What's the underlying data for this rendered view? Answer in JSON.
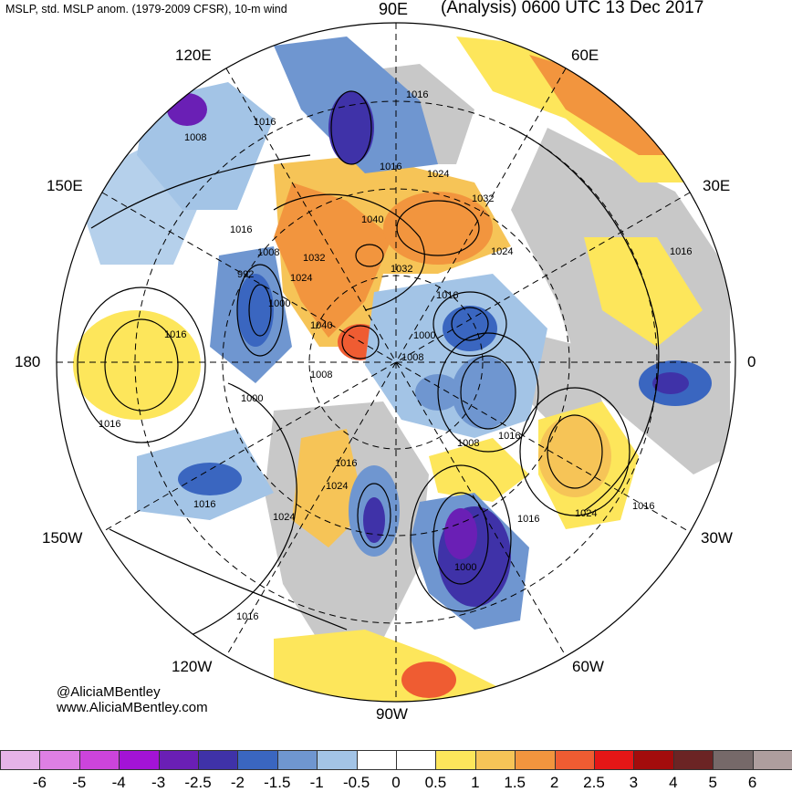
{
  "header": {
    "left_title": "MSLP, std. MSLP anom. (1979-2009 CFSR), 10-m wind",
    "right_title": "(Analysis) 0600 UTC 13 Dec 2017"
  },
  "longitude_labels": {
    "n90e": "90E",
    "n60e": "60E",
    "n120e": "120E",
    "n30e": "30E",
    "n150e": "150E",
    "n180": "180",
    "n0": "0",
    "n150w": "150W",
    "n30w": "30W",
    "n120w": "120W",
    "n60w": "60W",
    "n90w": "90W"
  },
  "credit": {
    "handle": "@AliciaMBentley",
    "site": "www.AliciaMBentley.com"
  },
  "pressure_labels": [
    "1016",
    "1016",
    "1008",
    "1016",
    "1024",
    "1032",
    "1040",
    "1032",
    "1024",
    "1016",
    "1008",
    "1032",
    "1024",
    "1016",
    "992",
    "1000",
    "1040",
    "1008",
    "1000",
    "1008",
    "1016",
    "1016",
    "1000",
    "1008",
    "1016",
    "1024",
    "1016",
    "1024",
    "1016",
    "1024",
    "1000",
    "1016",
    "1016",
    "1016",
    "1016"
  ],
  "colorbar": {
    "colors": [
      "#e6b3e8",
      "#de7fe4",
      "#cc44dc",
      "#a313d6",
      "#6a1fb5",
      "#3f32a8",
      "#3a66c0",
      "#6f96d0",
      "#a3c4e6",
      "#ffffff",
      "#ffffff",
      "#fde65b",
      "#f6c457",
      "#f2953e",
      "#ef5c32",
      "#e51616",
      "#a30c0c",
      "#6b2424",
      "#766969",
      "#ae9e9e"
    ],
    "labels": [
      "-6",
      "-5",
      "-4",
      "-3",
      "-2.5",
      "-2",
      "-1.5",
      "-1",
      "-0.5",
      "0",
      "0.5",
      "1",
      "1.5",
      "2",
      "2.5",
      "3",
      "4",
      "5",
      "6"
    ]
  }
}
